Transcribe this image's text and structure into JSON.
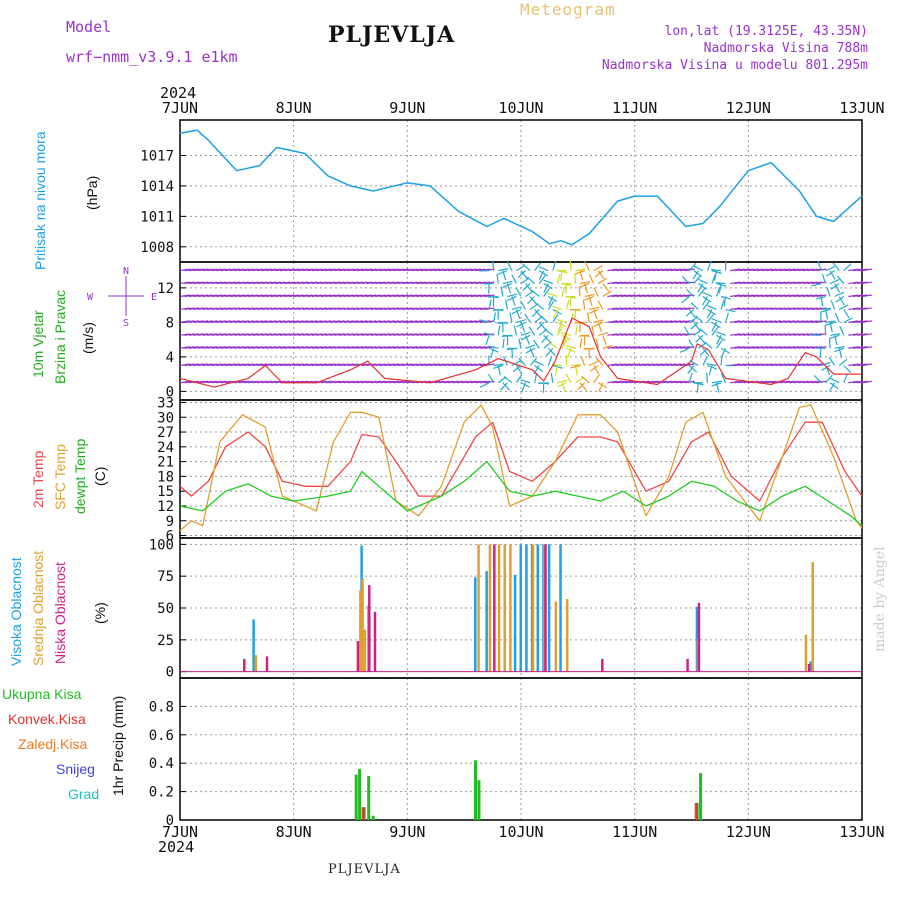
{
  "header": {
    "model_label": "Model",
    "model_name": "wrf−nmm_v3.9.1  e1km",
    "title": "PLJEVLJA",
    "meteogram": "Meteogram",
    "lonlat": "lon,lat (19.3125E, 43.35N)",
    "elev": "Nadmorska Visina 788m",
    "elev_model": "Nadmorska Visina u modelu 801.295m",
    "footer": "PLJEVLJA",
    "credit": "made by Angel"
  },
  "time_axis": {
    "year": "2024",
    "labels": [
      "7JUN",
      "8JUN",
      "9JUN",
      "10JUN",
      "11JUN",
      "12JUN",
      "13JUN"
    ],
    "start_day": 7,
    "end_day": 13
  },
  "colors": {
    "pressure": "#1ea0e6",
    "temp2m": "#f04848",
    "sfc": "#e0a030",
    "dew": "#22cc22",
    "high": "#1ea0e6",
    "mid": "#e0a030",
    "low": "#cc2288",
    "total": "#22bb22",
    "konvek": "#e83030",
    "zaledj": "#f07820",
    "snijeg": "#4040dd",
    "grad": "#20c0c0",
    "purple": "#9933cc",
    "green": "#22aa22"
  },
  "panels": {
    "pressure": {
      "label": "Pritisak na nivou mora",
      "unit": "(hPa)",
      "ylim": [
        1006.5,
        1020.5
      ],
      "ticks": [
        "1017",
        "1014",
        "1011",
        "1008"
      ]
    },
    "wind": {
      "label1": "10m Vjetar",
      "label2": "Brzina i Pravac",
      "unit": "(m/s)",
      "ylim": [
        -1,
        15
      ],
      "ticks": [
        "12",
        "8",
        "4",
        "0"
      ],
      "compass": {
        "n": "N",
        "s": "S",
        "e": "E",
        "w": "W"
      }
    },
    "temp": {
      "label_2m": "2m Temp",
      "label_sfc": "SFC Temp",
      "label_dew": "dewpt Temp",
      "unit": "(C)",
      "ylim": [
        5.5,
        33.5
      ],
      "ticks": [
        "33",
        "30",
        "27",
        "24",
        "21",
        "18",
        "15",
        "12",
        "9",
        "6"
      ]
    },
    "cloud": {
      "label_high": "Visoka Oblacnost",
      "label_mid": "Srednja Oblacnost",
      "label_low": "Niska Oblacnost",
      "unit": "(%)",
      "ylim": [
        -5,
        105
      ],
      "ticks": [
        "100",
        "75",
        "50",
        "25",
        "0"
      ]
    },
    "precip": {
      "unit": "1hr Precip (mm)",
      "ylim": [
        0,
        1.0
      ],
      "ticks": [
        "0.8",
        "0.6",
        "0.4",
        "0.2",
        "0"
      ],
      "legend": [
        "Ukupna Kisa",
        "Konvek.Kisa",
        "Zaledj.Kisa",
        "Snijeg",
        "Grad"
      ]
    }
  },
  "chart_data": [
    {
      "type": "line",
      "title": "",
      "ylabel": "Pritisak na nivou mora (hPa)",
      "x_unit": "day (June 2024)",
      "series": [
        {
          "name": "Pritisak na nivou mora",
          "x": [
            7.0,
            7.15,
            7.25,
            7.5,
            7.7,
            7.85,
            8.1,
            8.3,
            8.5,
            8.7,
            9.0,
            9.2,
            9.45,
            9.7,
            9.85,
            10.1,
            10.25,
            10.35,
            10.45,
            10.6,
            10.85,
            11.0,
            11.2,
            11.45,
            11.6,
            11.75,
            12.0,
            12.2,
            12.45,
            12.6,
            12.75,
            12.9,
            13.0
          ],
          "y": [
            1019.2,
            1019.5,
            1018.5,
            1015.5,
            1016,
            1017.8,
            1017.2,
            1015,
            1014,
            1013.5,
            1014.3,
            1014,
            1011.5,
            1010,
            1010.8,
            1009.5,
            1008.3,
            1008.6,
            1008.2,
            1009.3,
            1012.5,
            1013,
            1013,
            1010,
            1010.3,
            1012,
            1015.5,
            1016.3,
            1013.5,
            1011,
            1010.5,
            1012,
            1013
          ]
        }
      ]
    },
    {
      "type": "line",
      "title": "",
      "ylabel": "10m Vjetar Brzina i Pravac (m/s)",
      "x_unit": "day (June 2024)",
      "series": [
        {
          "name": "10m Vjetar",
          "x": [
            7.0,
            7.3,
            7.6,
            7.75,
            7.9,
            8.2,
            8.5,
            8.65,
            8.8,
            9.2,
            9.6,
            9.8,
            10.1,
            10.2,
            10.3,
            10.45,
            10.6,
            10.7,
            10.85,
            11.2,
            11.5,
            11.55,
            11.65,
            11.8,
            12.2,
            12.35,
            12.5,
            12.6,
            12.75,
            13.0
          ],
          "y": [
            1.5,
            0.5,
            1.5,
            3.0,
            1.0,
            1.0,
            2.5,
            3.5,
            1.5,
            1.0,
            2.5,
            3.8,
            2.5,
            1.2,
            3.5,
            8.5,
            7.5,
            4.0,
            1.5,
            0.8,
            3.5,
            5.5,
            4.8,
            1.5,
            0.8,
            1.5,
            4.5,
            4.0,
            2.0,
            2.0
          ]
        }
      ]
    },
    {
      "type": "line",
      "title": "",
      "ylabel": "Temp (C)",
      "x_unit": "day (June 2024)",
      "series": [
        {
          "name": "2m Temp",
          "x": [
            7.0,
            7.1,
            7.25,
            7.4,
            7.6,
            7.75,
            7.9,
            8.1,
            8.3,
            8.5,
            8.6,
            8.75,
            8.9,
            9.1,
            9.3,
            9.5,
            9.6,
            9.75,
            9.9,
            10.1,
            10.3,
            10.5,
            10.7,
            10.85,
            11.1,
            11.3,
            11.5,
            11.65,
            11.85,
            12.1,
            12.3,
            12.5,
            12.65,
            12.85,
            13.0
          ],
          "y": [
            16,
            14,
            17,
            24,
            27,
            24,
            17,
            16,
            16,
            21,
            26.5,
            26,
            21,
            14,
            14,
            22,
            26,
            29,
            19,
            17,
            21,
            26,
            26,
            25,
            15,
            17,
            25,
            27,
            18,
            13,
            22,
            29,
            29,
            19,
            14
          ]
        },
        {
          "name": "SFC Temp",
          "x": [
            7.0,
            7.1,
            7.2,
            7.35,
            7.55,
            7.75,
            7.9,
            8.2,
            8.35,
            8.5,
            8.6,
            8.75,
            8.9,
            9.1,
            9.3,
            9.5,
            9.65,
            9.75,
            9.9,
            10.1,
            10.3,
            10.5,
            10.7,
            10.85,
            11.1,
            11.3,
            11.45,
            11.6,
            11.8,
            12.1,
            12.3,
            12.45,
            12.55,
            12.75,
            12.95,
            13.0
          ],
          "y": [
            7,
            9,
            8,
            25,
            30.5,
            28,
            14,
            11,
            25,
            31,
            31,
            30,
            13,
            10,
            16,
            29,
            32.5,
            28,
            12,
            14,
            21,
            30.5,
            30.5,
            27,
            10,
            18,
            29,
            31,
            18,
            9,
            22,
            32,
            32.5,
            22,
            9,
            7.5
          ]
        },
        {
          "name": "dewpt Temp",
          "x": [
            7.0,
            7.2,
            7.4,
            7.6,
            7.8,
            8.0,
            8.3,
            8.5,
            8.6,
            8.8,
            9.0,
            9.3,
            9.5,
            9.7,
            9.9,
            10.1,
            10.3,
            10.5,
            10.7,
            10.9,
            11.1,
            11.3,
            11.5,
            11.7,
            11.9,
            12.1,
            12.3,
            12.5,
            12.7,
            12.9,
            13.0
          ],
          "y": [
            12,
            11,
            15,
            16.5,
            14,
            13,
            14,
            15,
            19,
            15,
            11,
            14,
            17,
            21,
            15,
            14,
            15,
            14,
            13,
            15,
            12,
            14,
            17,
            16,
            13,
            11,
            14,
            16,
            13,
            10,
            8
          ]
        }
      ]
    },
    {
      "type": "bar",
      "title": "",
      "ylabel": "Oblacnost (%)",
      "x_unit": "day (June 2024)",
      "series": [
        {
          "name": "Visoka Oblacnost",
          "x": [
            7.65,
            8.6,
            9.6,
            9.7,
            9.95,
            10.0,
            10.05,
            10.1,
            10.15,
            10.2,
            10.25,
            10.35,
            11.55,
            12.55
          ],
          "y": [
            41,
            99,
            74,
            79,
            76,
            100,
            100,
            100,
            100,
            100,
            100,
            100,
            51,
            8
          ]
        },
        {
          "name": "Srednja Oblacnost",
          "x": [
            7.66,
            8.58,
            8.6,
            8.62,
            8.65,
            9.62,
            9.72,
            9.8,
            9.85,
            9.9,
            10.1,
            10.2,
            10.3,
            10.4,
            11.55,
            12.5,
            12.56
          ],
          "y": [
            13,
            64,
            73,
            33,
            52,
            100,
            100,
            100,
            100,
            100,
            100,
            100,
            55,
            57,
            26,
            29,
            86
          ]
        },
        {
          "name": "Niska Oblacnost",
          "x": [
            7.55,
            7.75,
            8.55,
            8.65,
            8.7,
            9.75,
            10.2,
            10.7,
            11.45,
            11.55,
            12.52
          ],
          "y": [
            10,
            12,
            24,
            68,
            47,
            100,
            100,
            10,
            10,
            54,
            6
          ]
        }
      ]
    },
    {
      "type": "bar",
      "title": "",
      "ylabel": "1hr Precip (mm)",
      "x_unit": "day (June 2024)",
      "series": [
        {
          "name": "Ukupna Kisa",
          "x": [
            8.55,
            8.58,
            8.62,
            8.66,
            8.7,
            9.6,
            9.63,
            11.55,
            11.58
          ],
          "y": [
            0.32,
            0.36,
            0.09,
            0.31,
            0.03,
            0.42,
            0.28,
            0.12,
            0.33
          ]
        },
        {
          "name": "Konvek.Kisa",
          "x": [
            8.62,
            11.55
          ],
          "y": [
            0.09,
            0.12
          ]
        }
      ]
    }
  ]
}
